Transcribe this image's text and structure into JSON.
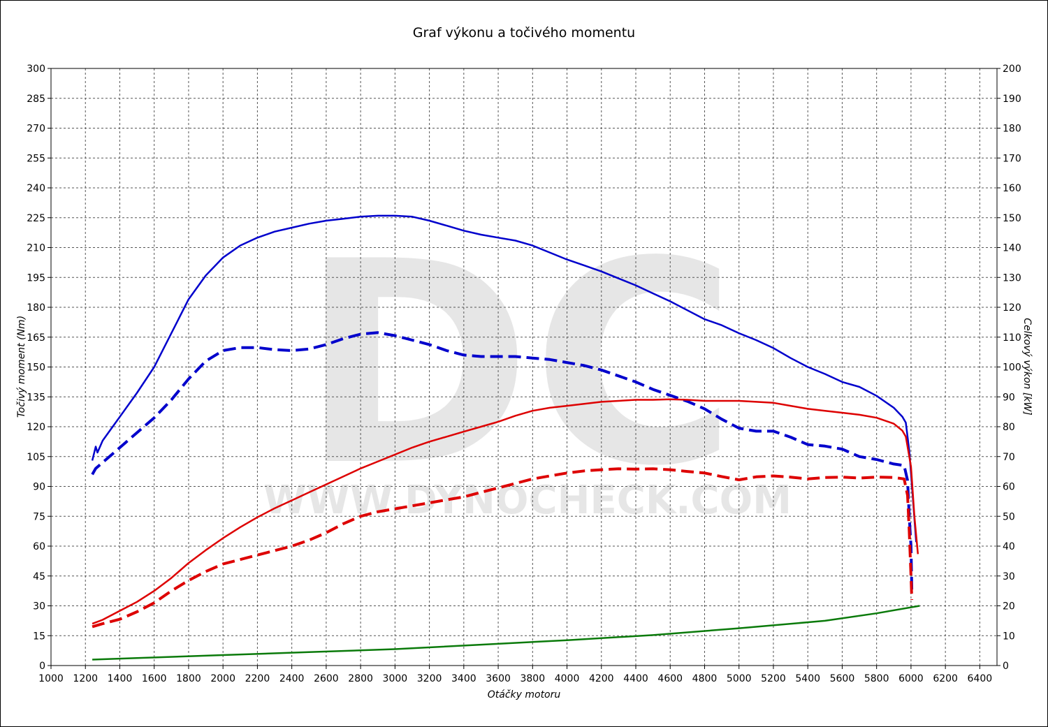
{
  "chart_data": {
    "type": "line",
    "title": "Graf výkonu a točivého momentu",
    "xlabel": "Otáčky motoru",
    "ylabel_left": "Točivý moment (Nm)",
    "ylabel_right": "Celkový výkon [kW]",
    "xlim": [
      1000,
      6500
    ],
    "ylim_left": [
      0,
      300
    ],
    "ylim_right": [
      0,
      200
    ],
    "x_ticks": [
      "1000",
      "1200",
      "1400",
      "1600",
      "1800",
      "2000",
      "2200",
      "2400",
      "2600",
      "2800",
      "3000",
      "3200",
      "3400",
      "3600",
      "3800",
      "4000",
      "4200",
      "4400",
      "4600",
      "4800",
      "5000",
      "5200",
      "5400",
      "5600",
      "5800",
      "6000",
      "6200",
      "6400"
    ],
    "y_ticks_left": [
      "0",
      "15",
      "30",
      "45",
      "60",
      "75",
      "90",
      "105",
      "120",
      "135",
      "150",
      "165",
      "180",
      "195",
      "210",
      "225",
      "240",
      "255",
      "270",
      "285",
      "300"
    ],
    "y_ticks_right": [
      "0",
      "10",
      "20",
      "30",
      "40",
      "50",
      "60",
      "70",
      "80",
      "90",
      "100",
      "110",
      "120",
      "130",
      "140",
      "150",
      "160",
      "170",
      "180",
      "190",
      "200"
    ],
    "grid": true,
    "watermark": {
      "logo": "DC",
      "text": "WWW.DYNOCHECK.COM"
    },
    "series": [
      {
        "color": "#0000cc",
        "style": "solid",
        "axis": "left",
        "points": [
          [
            1240,
            103
          ],
          [
            1260,
            110
          ],
          [
            1270,
            107
          ],
          [
            1300,
            113
          ],
          [
            1350,
            119
          ],
          [
            1400,
            125
          ],
          [
            1500,
            137
          ],
          [
            1600,
            150
          ],
          [
            1700,
            167
          ],
          [
            1800,
            184
          ],
          [
            1900,
            196
          ],
          [
            2000,
            205
          ],
          [
            2100,
            211
          ],
          [
            2200,
            215
          ],
          [
            2300,
            218
          ],
          [
            2400,
            220
          ],
          [
            2500,
            222
          ],
          [
            2600,
            223.5
          ],
          [
            2700,
            224.5
          ],
          [
            2800,
            225.5
          ],
          [
            2900,
            226
          ],
          [
            3000,
            226
          ],
          [
            3100,
            225.5
          ],
          [
            3200,
            223.5
          ],
          [
            3300,
            221
          ],
          [
            3400,
            218.5
          ],
          [
            3500,
            216.5
          ],
          [
            3600,
            215
          ],
          [
            3700,
            213.5
          ],
          [
            3800,
            211
          ],
          [
            3900,
            207.5
          ],
          [
            4000,
            204
          ],
          [
            4100,
            201
          ],
          [
            4200,
            198
          ],
          [
            4300,
            194.5
          ],
          [
            4400,
            191
          ],
          [
            4500,
            187
          ],
          [
            4600,
            183
          ],
          [
            4700,
            178.5
          ],
          [
            4800,
            174
          ],
          [
            4900,
            171
          ],
          [
            5000,
            167
          ],
          [
            5100,
            163.5
          ],
          [
            5200,
            159.5
          ],
          [
            5300,
            154.5
          ],
          [
            5400,
            150
          ],
          [
            5500,
            146.5
          ],
          [
            5600,
            142.5
          ],
          [
            5700,
            140
          ],
          [
            5800,
            135.5
          ],
          [
            5900,
            129.5
          ],
          [
            5950,
            125
          ],
          [
            5970,
            122
          ],
          [
            5990,
            108
          ],
          [
            6010,
            85
          ],
          [
            6030,
            62
          ]
        ]
      },
      {
        "color": "#0000cc",
        "style": "dashed",
        "axis": "right",
        "points": [
          [
            1240,
            64
          ],
          [
            1260,
            66
          ],
          [
            1300,
            68
          ],
          [
            1400,
            73
          ],
          [
            1500,
            78
          ],
          [
            1600,
            83
          ],
          [
            1700,
            89
          ],
          [
            1800,
            96
          ],
          [
            1900,
            102
          ],
          [
            2000,
            105.5
          ],
          [
            2100,
            106.5
          ],
          [
            2200,
            106.5
          ],
          [
            2300,
            105.8
          ],
          [
            2400,
            105.5
          ],
          [
            2500,
            106
          ],
          [
            2600,
            107.5
          ],
          [
            2700,
            109.5
          ],
          [
            2800,
            111
          ],
          [
            2900,
            111.5
          ],
          [
            3000,
            110.5
          ],
          [
            3100,
            109
          ],
          [
            3200,
            107.5
          ],
          [
            3300,
            105.5
          ],
          [
            3400,
            104
          ],
          [
            3500,
            103.5
          ],
          [
            3600,
            103.5
          ],
          [
            3700,
            103.5
          ],
          [
            3800,
            103
          ],
          [
            3900,
            102.5
          ],
          [
            4000,
            101.5
          ],
          [
            4100,
            100.5
          ],
          [
            4200,
            99
          ],
          [
            4300,
            97
          ],
          [
            4400,
            95
          ],
          [
            4500,
            92.5
          ],
          [
            4600,
            90.5
          ],
          [
            4700,
            88.5
          ],
          [
            4800,
            86
          ],
          [
            4900,
            82.5
          ],
          [
            5000,
            79.5
          ],
          [
            5100,
            78.5
          ],
          [
            5200,
            78.5
          ],
          [
            5300,
            76.5
          ],
          [
            5400,
            74
          ],
          [
            5500,
            73.5
          ],
          [
            5600,
            72.5
          ],
          [
            5700,
            70
          ],
          [
            5800,
            69
          ],
          [
            5900,
            67.5
          ],
          [
            5960,
            67
          ],
          [
            5980,
            62
          ],
          [
            5990,
            50
          ],
          [
            6000,
            40
          ],
          [
            6005,
            25
          ]
        ]
      },
      {
        "color": "#dd0000",
        "style": "solid",
        "axis": "left",
        "points": [
          [
            1240,
            21
          ],
          [
            1300,
            23
          ],
          [
            1400,
            27.5
          ],
          [
            1500,
            32
          ],
          [
            1600,
            37.5
          ],
          [
            1700,
            44
          ],
          [
            1800,
            51.5
          ],
          [
            1900,
            58
          ],
          [
            2000,
            64
          ],
          [
            2100,
            69.5
          ],
          [
            2200,
            74.5
          ],
          [
            2300,
            79
          ],
          [
            2400,
            83
          ],
          [
            2500,
            87
          ],
          [
            2600,
            91
          ],
          [
            2700,
            95
          ],
          [
            2800,
            99
          ],
          [
            2900,
            102.5
          ],
          [
            3000,
            106
          ],
          [
            3100,
            109.5
          ],
          [
            3200,
            112.5
          ],
          [
            3300,
            115
          ],
          [
            3400,
            117.5
          ],
          [
            3500,
            120
          ],
          [
            3600,
            122.5
          ],
          [
            3700,
            125.5
          ],
          [
            3800,
            128
          ],
          [
            3900,
            129.5
          ],
          [
            4000,
            130.5
          ],
          [
            4100,
            131.5
          ],
          [
            4200,
            132.5
          ],
          [
            4300,
            133
          ],
          [
            4400,
            133.5
          ],
          [
            4500,
            133.5
          ],
          [
            4600,
            133.8
          ],
          [
            4700,
            133.5
          ],
          [
            4800,
            133
          ],
          [
            4900,
            133
          ],
          [
            5000,
            133
          ],
          [
            5100,
            132.5
          ],
          [
            5200,
            132
          ],
          [
            5300,
            130.5
          ],
          [
            5400,
            129
          ],
          [
            5500,
            128
          ],
          [
            5600,
            127
          ],
          [
            5700,
            126
          ],
          [
            5800,
            124.5
          ],
          [
            5900,
            121.5
          ],
          [
            5950,
            118
          ],
          [
            5970,
            115
          ],
          [
            6000,
            100
          ],
          [
            6020,
            75
          ],
          [
            6040,
            56
          ]
        ]
      },
      {
        "color": "#dd0000",
        "style": "dashed",
        "axis": "right",
        "points": [
          [
            1240,
            13
          ],
          [
            1300,
            14
          ],
          [
            1400,
            15.5
          ],
          [
            1500,
            18
          ],
          [
            1600,
            21
          ],
          [
            1700,
            25
          ],
          [
            1800,
            28.5
          ],
          [
            1900,
            31.5
          ],
          [
            2000,
            34
          ],
          [
            2100,
            35.5
          ],
          [
            2200,
            37
          ],
          [
            2300,
            38.5
          ],
          [
            2400,
            40
          ],
          [
            2500,
            42
          ],
          [
            2600,
            44.5
          ],
          [
            2700,
            47.5
          ],
          [
            2800,
            50
          ],
          [
            2900,
            51.5
          ],
          [
            3000,
            52.5
          ],
          [
            3100,
            53.5
          ],
          [
            3200,
            54.5
          ],
          [
            3300,
            55.5
          ],
          [
            3400,
            56.5
          ],
          [
            3500,
            58
          ],
          [
            3600,
            59.5
          ],
          [
            3700,
            61
          ],
          [
            3800,
            62.5
          ],
          [
            3900,
            63.5
          ],
          [
            4000,
            64.5
          ],
          [
            4100,
            65.2
          ],
          [
            4200,
            65.6
          ],
          [
            4300,
            65.9
          ],
          [
            4400,
            65.8
          ],
          [
            4500,
            65.9
          ],
          [
            4600,
            65.6
          ],
          [
            4700,
            65
          ],
          [
            4800,
            64.5
          ],
          [
            4900,
            63.3
          ],
          [
            5000,
            62.2
          ],
          [
            5100,
            63.2
          ],
          [
            5200,
            63.5
          ],
          [
            5300,
            63.1
          ],
          [
            5400,
            62.5
          ],
          [
            5500,
            63
          ],
          [
            5600,
            63.1
          ],
          [
            5700,
            62.8
          ],
          [
            5800,
            63.1
          ],
          [
            5900,
            63
          ],
          [
            5960,
            62.5
          ],
          [
            5980,
            57
          ],
          [
            5990,
            45
          ],
          [
            6000,
            30
          ],
          [
            6005,
            22
          ]
        ]
      },
      {
        "color": "#0a7a0a",
        "style": "solid",
        "axis": "right",
        "points": [
          [
            1240,
            2
          ],
          [
            1500,
            2.5
          ],
          [
            2000,
            3.5
          ],
          [
            2500,
            4.5
          ],
          [
            3000,
            5.5
          ],
          [
            3500,
            7
          ],
          [
            4000,
            8.5
          ],
          [
            4500,
            10.2
          ],
          [
            5000,
            12.5
          ],
          [
            5500,
            15
          ],
          [
            5800,
            17.5
          ],
          [
            6050,
            20
          ]
        ]
      }
    ]
  }
}
